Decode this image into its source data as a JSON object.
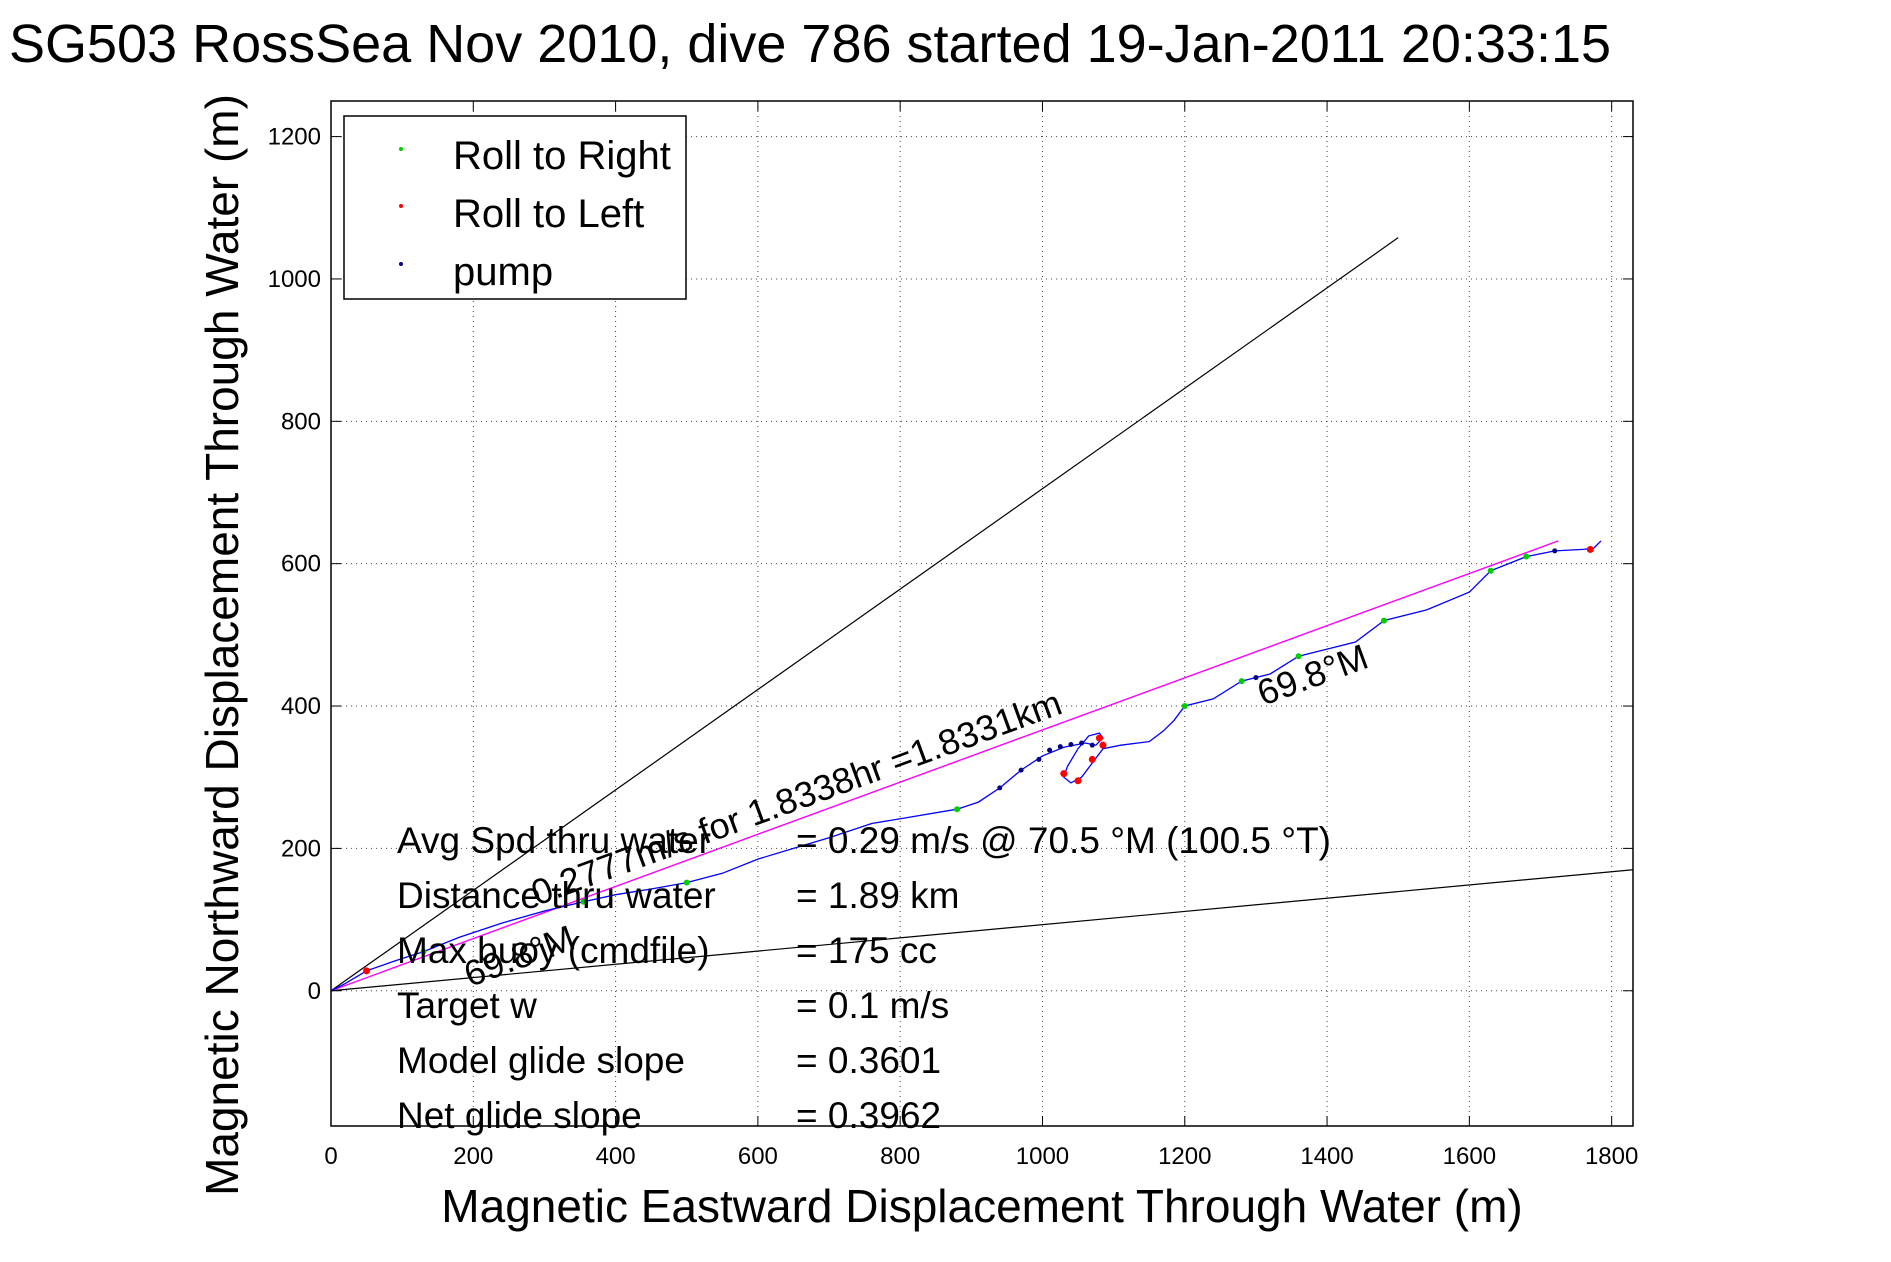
{
  "chart_data": {
    "type": "scatter",
    "title": "SG503 RossSea Nov 2010, dive 786 started 19-Jan-2011 20:33:15",
    "xlabel": "Magnetic Eastward Displacement Through Water (m)",
    "ylabel": "Magnetic Northward Displacement Through Water (m)",
    "xlim": [
      0,
      1830
    ],
    "ylim": [
      -190,
      1250
    ],
    "xticks": [
      0,
      200,
      400,
      600,
      800,
      1000,
      1200,
      1400,
      1600,
      1800
    ],
    "yticks": [
      0,
      200,
      400,
      600,
      800,
      1000,
      1200
    ],
    "grid": true,
    "legend": {
      "position": "top-left",
      "entries": [
        {
          "label": "Roll to Right",
          "color": "#00cc00"
        },
        {
          "label": "Roll to Left",
          "color": "#ff0000"
        },
        {
          "label": "pump",
          "color": "#000080"
        }
      ]
    },
    "colors": {
      "track": "#0000ff",
      "roll_right": "#00cc00",
      "roll_left": "#ff0000",
      "pump": "#000080",
      "heading_line": "#ff00ff",
      "ref_line": "#000000"
    },
    "track": [
      [
        0,
        0
      ],
      [
        20,
        10
      ],
      [
        50,
        28
      ],
      [
        90,
        42
      ],
      [
        130,
        55
      ],
      [
        180,
        75
      ],
      [
        240,
        95
      ],
      [
        300,
        112
      ],
      [
        355,
        125
      ],
      [
        400,
        135
      ],
      [
        450,
        143
      ],
      [
        500,
        152
      ],
      [
        550,
        165
      ],
      [
        600,
        185
      ],
      [
        650,
        200
      ],
      [
        700,
        215
      ],
      [
        760,
        235
      ],
      [
        820,
        245
      ],
      [
        880,
        255
      ],
      [
        910,
        265
      ],
      [
        940,
        285
      ],
      [
        970,
        310
      ],
      [
        1000,
        330
      ],
      [
        1030,
        342
      ],
      [
        1060,
        348
      ],
      [
        1075,
        345
      ],
      [
        1085,
        355
      ],
      [
        1080,
        362
      ],
      [
        1065,
        358
      ],
      [
        1050,
        340
      ],
      [
        1035,
        315
      ],
      [
        1030,
        300
      ],
      [
        1040,
        292
      ],
      [
        1055,
        300
      ],
      [
        1070,
        320
      ],
      [
        1085,
        340
      ],
      [
        1110,
        345
      ],
      [
        1150,
        350
      ],
      [
        1170,
        365
      ],
      [
        1185,
        380
      ],
      [
        1200,
        400
      ],
      [
        1240,
        410
      ],
      [
        1280,
        435
      ],
      [
        1320,
        445
      ],
      [
        1360,
        470
      ],
      [
        1400,
        480
      ],
      [
        1440,
        490
      ],
      [
        1480,
        520
      ],
      [
        1540,
        535
      ],
      [
        1600,
        560
      ],
      [
        1630,
        590
      ],
      [
        1680,
        610
      ],
      [
        1720,
        618
      ],
      [
        1760,
        620
      ],
      [
        1775,
        622
      ],
      [
        1785,
        632
      ]
    ],
    "roll_right_points": [
      [
        130,
        55
      ],
      [
        355,
        125
      ],
      [
        500,
        152
      ],
      [
        880,
        255
      ],
      [
        1200,
        400
      ],
      [
        1280,
        435
      ],
      [
        1360,
        470
      ],
      [
        1480,
        520
      ],
      [
        1630,
        590
      ],
      [
        1680,
        610
      ]
    ],
    "roll_left_points": [
      [
        50,
        28
      ],
      [
        1030,
        305
      ],
      [
        1050,
        295
      ],
      [
        1070,
        325
      ],
      [
        1080,
        355
      ],
      [
        1085,
        345
      ],
      [
        1770,
        620
      ]
    ],
    "pump_points": [
      [
        940,
        285
      ],
      [
        970,
        310
      ],
      [
        995,
        325
      ],
      [
        1010,
        338
      ],
      [
        1025,
        343
      ],
      [
        1040,
        346
      ],
      [
        1055,
        348
      ],
      [
        1070,
        345
      ],
      [
        1300,
        440
      ],
      [
        1720,
        618
      ]
    ],
    "heading_line": {
      "x": [
        0,
        1725
      ],
      "y": [
        0,
        632
      ]
    },
    "reference_lines": [
      {
        "x": [
          0,
          1500
        ],
        "y": [
          0,
          1058
        ]
      },
      {
        "x": [
          0,
          1830
        ],
        "y": [
          0,
          170
        ]
      }
    ],
    "annotations": {
      "heading_label": "69.8°M",
      "speed_label": "0.2777m/s for 1.8338hr =1.8331km",
      "origin_heading_label": "69.8°M"
    },
    "stats": [
      {
        "label": "Avg Spd thru water",
        "value": "=  0.29 m/s @  70.5 °M (100.5 °T)"
      },
      {
        "label": "Distance thru water",
        "value": "=  1.89 km"
      },
      {
        "label": "Max buoy (cmdfile)",
        "value": "= 175 cc"
      },
      {
        "label": "Target w",
        "value": "= 0.1 m/s"
      },
      {
        "label": "Model glide slope",
        "value": "= 0.3601"
      },
      {
        "label": "Net glide slope",
        "value": "= 0.3962"
      }
    ]
  }
}
